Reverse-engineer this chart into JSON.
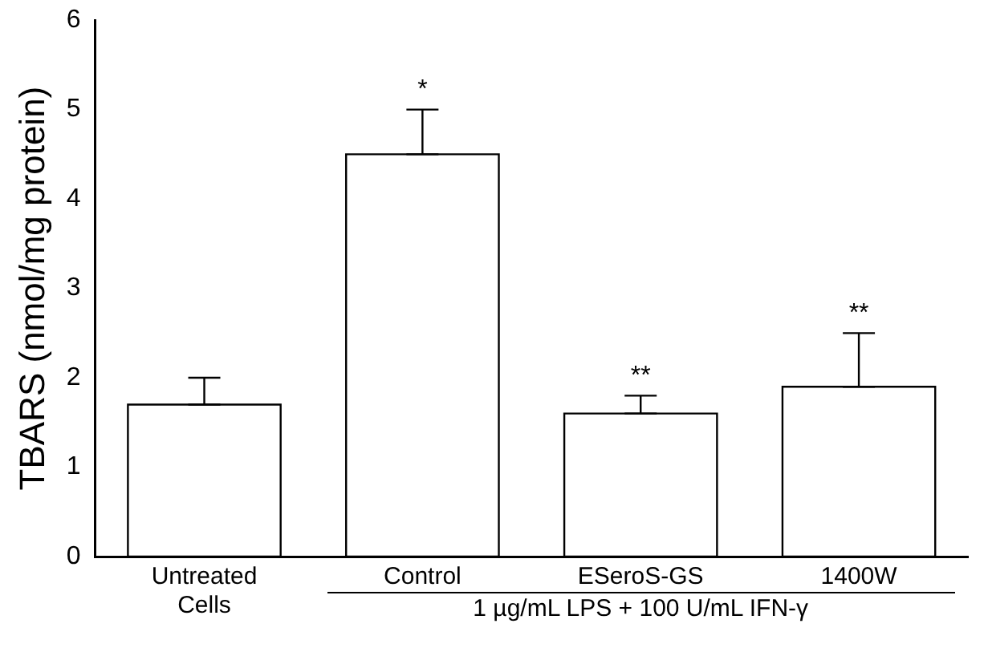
{
  "chart_data": {
    "type": "bar",
    "ylabel": "TBARS (nmol/mg protein)",
    "categories": [
      "Untreated Cells",
      "Control",
      "ESeroS-GS",
      "1400W"
    ],
    "values": [
      1.7,
      4.5,
      1.6,
      1.9
    ],
    "errors": [
      [
        1.7,
        2.0
      ],
      [
        4.5,
        5.0
      ],
      [
        1.6,
        1.8
      ],
      [
        1.9,
        2.5
      ]
    ],
    "color": "#000000",
    "ylim": [
      0,
      6
    ],
    "yticks": [
      0,
      1,
      2,
      3,
      4,
      5,
      6
    ],
    "grid": false,
    "legend": false,
    "annotations": [
      {
        "text": "*",
        "x": "Control",
        "y": 5.0
      },
      {
        "text": "**",
        "x": "ESeroS-GS",
        "y": 1.8
      },
      {
        "text": "**",
        "x": "1400W",
        "y": 2.5
      },
      "1 µg/mL LPS + 100 U/mL IFN-γ"
    ]
  }
}
